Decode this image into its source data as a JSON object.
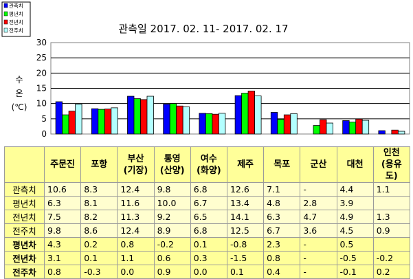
{
  "chart_data": {
    "type": "bar",
    "title": "관측일 2017. 02. 11- 2017. 02. 17",
    "ylabel_lines": [
      "수",
      "온",
      "(℃)"
    ],
    "ylim": [
      0,
      30
    ],
    "yticks": [
      0,
      5,
      10,
      15,
      20,
      25,
      30
    ],
    "grid": true,
    "legend_position": "top-left",
    "categories": [
      {
        "line1": "주문진",
        "line2": ""
      },
      {
        "line1": "포항",
        "line2": ""
      },
      {
        "line1": "부산",
        "line2": "(기장)"
      },
      {
        "line1": "통영",
        "line2": "(산양)"
      },
      {
        "line1": "여수",
        "line2": "(화양)"
      },
      {
        "line1": "제주",
        "line2": ""
      },
      {
        "line1": "목포",
        "line2": ""
      },
      {
        "line1": "군산",
        "line2": ""
      },
      {
        "line1": "대천",
        "line2": ""
      },
      {
        "line1": "인천",
        "line2": "(용유도)"
      }
    ],
    "series": [
      {
        "name": "관측치",
        "color": "#0000ff",
        "values": [
          10.6,
          8.3,
          12.4,
          9.8,
          6.8,
          12.6,
          7.1,
          null,
          4.4,
          1.1
        ]
      },
      {
        "name": "평년치",
        "color": "#00ff00",
        "values": [
          6.3,
          8.1,
          11.6,
          10.0,
          6.7,
          13.4,
          4.8,
          2.8,
          3.9,
          null
        ]
      },
      {
        "name": "전년치",
        "color": "#ff0000",
        "values": [
          7.5,
          8.2,
          11.3,
          9.2,
          6.5,
          14.1,
          6.3,
          4.7,
          4.9,
          1.3
        ]
      },
      {
        "name": "전주치",
        "color": "#b3ffff",
        "values": [
          9.8,
          8.6,
          12.4,
          8.9,
          6.8,
          12.5,
          6.7,
          3.6,
          4.5,
          0.9
        ]
      }
    ]
  },
  "table": {
    "rows": [
      {
        "label": "관측치",
        "kind": "base",
        "cells": [
          "10.6",
          "8.3",
          "12.4",
          "9.8",
          "6.8",
          "12.6",
          "7.1",
          "-",
          "4.4",
          "1.1"
        ]
      },
      {
        "label": "평년치",
        "kind": "base",
        "cells": [
          "6.3",
          "8.1",
          "11.6",
          "10.0",
          "6.7",
          "13.4",
          "4.8",
          "2.8",
          "3.9",
          ""
        ]
      },
      {
        "label": "전년치",
        "kind": "base",
        "cells": [
          "7.5",
          "8.2",
          "11.3",
          "9.2",
          "6.5",
          "14.1",
          "6.3",
          "4.7",
          "4.9",
          "1.3"
        ]
      },
      {
        "label": "전주치",
        "kind": "base",
        "cells": [
          "9.8",
          "8.6",
          "12.4",
          "8.9",
          "6.8",
          "12.5",
          "6.7",
          "3.6",
          "4.5",
          "0.9"
        ]
      },
      {
        "label": "평년차",
        "kind": "diff",
        "cells": [
          "4.3",
          "0.2",
          "0.8",
          "-0.2",
          "0.1",
          "-0.8",
          "2.3",
          "-",
          "0.5",
          ""
        ]
      },
      {
        "label": "전년차",
        "kind": "diff",
        "cells": [
          "3.1",
          "0.1",
          "1.1",
          "0.6",
          "0.3",
          "-1.5",
          "0.8",
          "-",
          "-0.5",
          "-0.2"
        ]
      },
      {
        "label": "전주차",
        "kind": "diff",
        "cells": [
          "0.8",
          "-0.3",
          "0.0",
          "0.9",
          "0.0",
          "0.1",
          "0.4",
          "-",
          "-0.1",
          "0.2"
        ]
      }
    ]
  }
}
